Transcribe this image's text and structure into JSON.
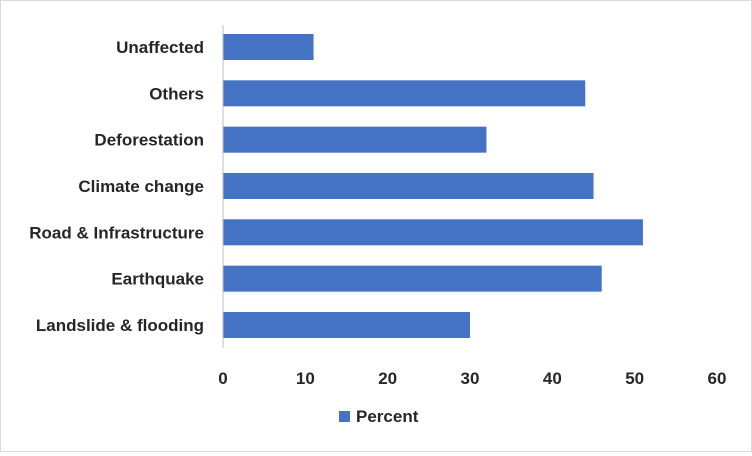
{
  "chart_data": {
    "type": "bar",
    "orientation": "horizontal",
    "categories": [
      "Unaffected",
      "Others",
      "Deforestation",
      "Climate change",
      "Road & Infrastructure",
      "Earthquake",
      "Landslide & flooding"
    ],
    "series": [
      {
        "name": "Percent",
        "values": [
          11,
          44,
          32,
          45,
          51,
          46,
          30
        ],
        "color": "#4472c4"
      }
    ],
    "xticks": [
      "0",
      "10",
      "20",
      "30",
      "40",
      "50",
      "60"
    ],
    "xlim": [
      0,
      60
    ],
    "grid": false,
    "legend_position": "bottom"
  }
}
